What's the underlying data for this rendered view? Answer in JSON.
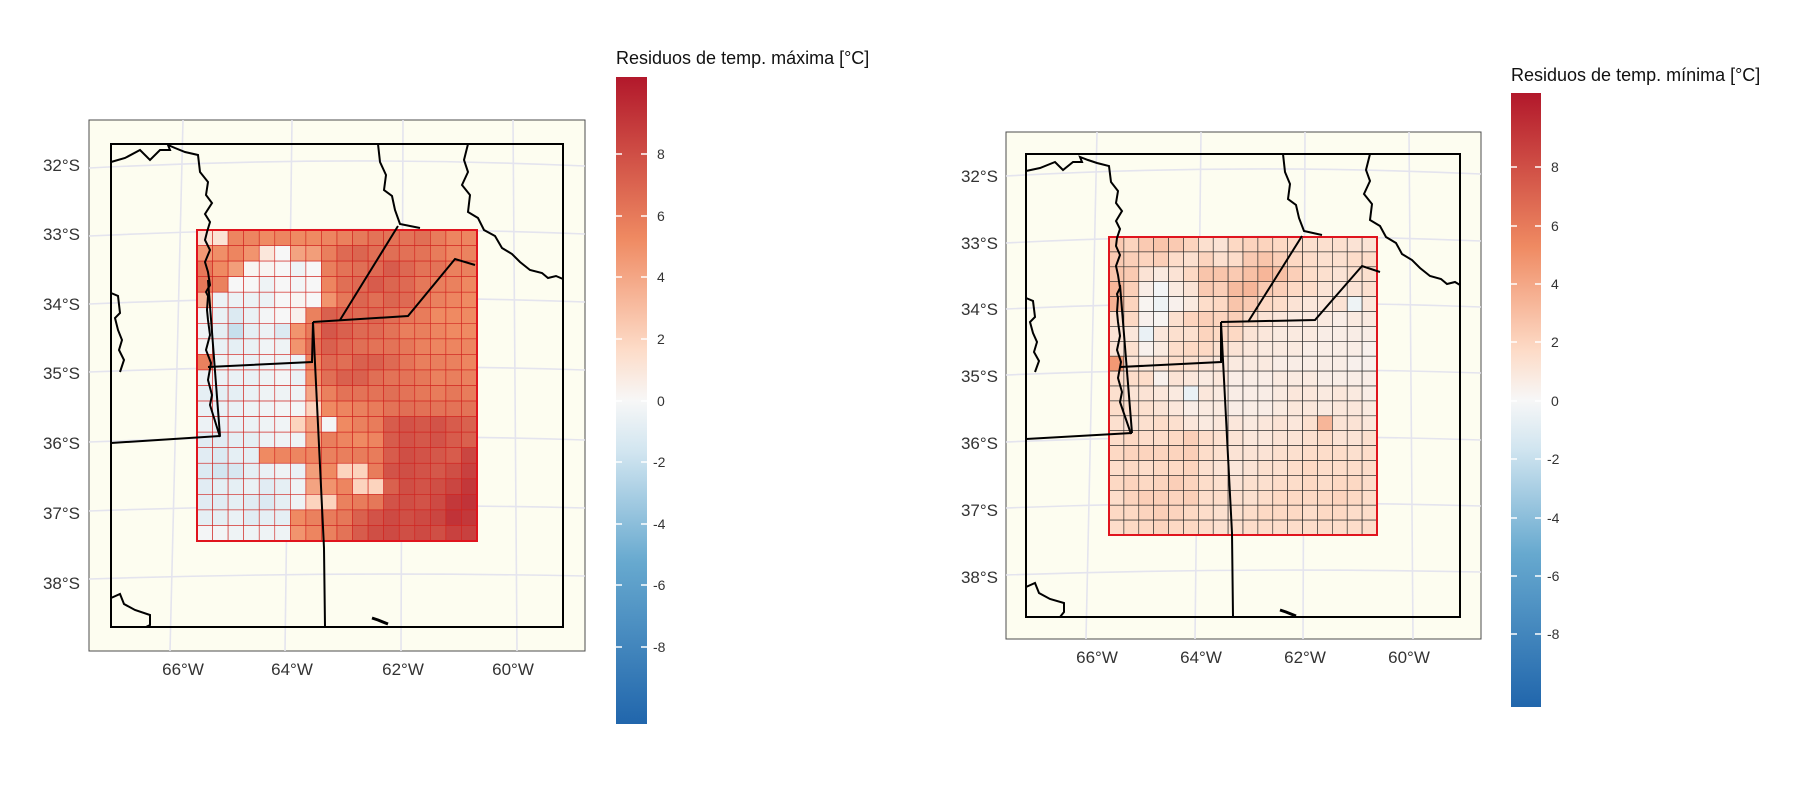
{
  "panels": [
    {
      "id": "max",
      "colorbar_title": "Residuos de temp. máxima [°C]",
      "colorbar_ticks": [
        "8",
        "6",
        "4",
        "2",
        "0",
        "-2",
        "-4",
        "-6",
        "-8"
      ],
      "lat_labels": [
        "32°S",
        "33°S",
        "34°S",
        "35°S",
        "36°S",
        "37°S",
        "38°S"
      ],
      "lon_labels": [
        "66°W",
        "64°W",
        "62°W",
        "60°W"
      ],
      "grid_cols": 18,
      "grid_rows": 20,
      "grid": [
        [
          1.2,
          1.2,
          5.2,
          5.2,
          5.0,
          5.2,
          5.0,
          5.0,
          5.2,
          5.4,
          5.7,
          6.0,
          6.0,
          6.0,
          6.2,
          5.6,
          5.2,
          5.2
        ],
        [
          4.4,
          4.8,
          5.2,
          4.6,
          1.0,
          0.0,
          4.0,
          4.2,
          5.5,
          6.4,
          6.6,
          6.2,
          6.2,
          6.1,
          6.0,
          5.6,
          5.2,
          5.3
        ],
        [
          5.8,
          5.0,
          4.2,
          0.2,
          0.2,
          0.0,
          -0.4,
          0.0,
          5.5,
          6.0,
          6.2,
          6.4,
          7.0,
          6.5,
          6.0,
          6.0,
          5.4,
          5.4
        ],
        [
          5.8,
          5.4,
          0.0,
          0.0,
          -0.4,
          0.0,
          -0.2,
          0.0,
          5.2,
          6.2,
          6.4,
          7.0,
          6.6,
          6.4,
          5.8,
          5.5,
          5.4,
          5.1
        ],
        [
          3.2,
          -0.5,
          -0.5,
          -0.5,
          -0.5,
          0.0,
          0.2,
          0.0,
          4.6,
          5.8,
          6.6,
          6.2,
          6.6,
          6.4,
          5.8,
          5.4,
          5.2,
          5.0
        ],
        [
          -0.2,
          -0.6,
          -1.2,
          -0.6,
          -0.2,
          0.0,
          0.4,
          5.4,
          6.8,
          6.6,
          6.4,
          6.6,
          6.2,
          5.8,
          5.6,
          5.0,
          5.0,
          5.0
        ],
        [
          -0.4,
          -0.8,
          -2.0,
          -0.8,
          -0.5,
          -1.2,
          4.6,
          5.6,
          7.2,
          6.8,
          6.4,
          6.3,
          6.0,
          5.5,
          5.5,
          5.2,
          5.0,
          5.0
        ],
        [
          -0.2,
          -0.6,
          -0.8,
          -0.6,
          -0.3,
          -0.4,
          4.6,
          6.0,
          6.8,
          6.4,
          6.2,
          6.0,
          6.0,
          5.8,
          5.4,
          5.2,
          5.2,
          5.2
        ],
        [
          5.4,
          -0.4,
          -0.4,
          -0.6,
          -0.3,
          -0.4,
          -0.5,
          5.2,
          6.4,
          6.2,
          6.8,
          6.8,
          6.4,
          5.9,
          5.5,
          5.5,
          5.4,
          5.2
        ],
        [
          -0.5,
          -0.5,
          -0.6,
          -0.6,
          -0.4,
          -0.2,
          -0.6,
          4.8,
          6.2,
          6.8,
          6.8,
          6.2,
          6.0,
          6.0,
          5.8,
          5.4,
          5.5,
          5.4
        ],
        [
          -0.8,
          -0.8,
          -0.8,
          -0.6,
          -0.4,
          -0.4,
          -0.4,
          3.8,
          5.4,
          6.0,
          6.0,
          6.0,
          6.2,
          6.0,
          5.8,
          5.6,
          5.8,
          5.6
        ],
        [
          -0.6,
          -0.6,
          -0.6,
          -0.4,
          -0.3,
          -0.2,
          -0.2,
          2.0,
          5.0,
          5.2,
          5.4,
          5.6,
          6.0,
          6.2,
          6.1,
          6.0,
          6.0,
          6.0
        ],
        [
          -0.5,
          -0.6,
          -0.6,
          -0.5,
          -0.4,
          -0.3,
          2.0,
          4.0,
          -0.2,
          5.0,
          5.4,
          5.6,
          7.0,
          7.4,
          7.2,
          7.4,
          7.0,
          6.8
        ],
        [
          -1.0,
          -1.0,
          -0.8,
          -0.8,
          -0.5,
          -0.4,
          -0.4,
          4.2,
          5.5,
          5.2,
          5.0,
          5.2,
          7.0,
          7.4,
          7.2,
          7.4,
          7.0,
          6.8
        ],
        [
          -1.0,
          -1.2,
          -0.8,
          -0.8,
          5.0,
          5.2,
          5.2,
          5.2,
          5.4,
          5.5,
          5.6,
          5.6,
          7.0,
          7.6,
          7.4,
          7.2,
          7.0,
          8.0
        ],
        [
          -1.2,
          -1.6,
          -1.4,
          -0.8,
          -0.6,
          -0.4,
          -0.6,
          4.2,
          5.0,
          2.0,
          2.0,
          5.6,
          7.4,
          7.6,
          7.4,
          7.2,
          7.6,
          8.2
        ],
        [
          -1.0,
          -0.8,
          -0.8,
          -0.6,
          -1.0,
          -0.8,
          -0.4,
          4.0,
          4.6,
          5.2,
          2.0,
          2.0,
          6.8,
          7.6,
          7.4,
          7.6,
          8.0,
          8.6
        ],
        [
          -1.0,
          -1.0,
          -0.8,
          -1.0,
          -1.2,
          -0.8,
          -0.4,
          2.0,
          2.0,
          5.4,
          5.6,
          5.8,
          7.4,
          7.6,
          7.4,
          7.8,
          8.6,
          8.8
        ],
        [
          -0.8,
          -0.8,
          -0.6,
          -1.0,
          -0.8,
          -0.8,
          5.0,
          5.4,
          5.6,
          5.8,
          6.8,
          7.4,
          7.8,
          7.6,
          7.8,
          8.0,
          8.8,
          8.6
        ],
        [
          -0.2,
          -0.2,
          -0.4,
          -0.4,
          -0.4,
          -0.4,
          4.6,
          5.2,
          5.4,
          6.0,
          7.0,
          7.6,
          7.8,
          7.6,
          7.8,
          7.6,
          8.2,
          8.2
        ]
      ]
    },
    {
      "id": "min",
      "colorbar_title": "Residuos de temp. mínima [°C]",
      "colorbar_ticks": [
        "8",
        "6",
        "4",
        "2",
        "0",
        "-2",
        "-4",
        "-6",
        "-8"
      ],
      "lat_labels": [
        "32°S",
        "33°S",
        "34°S",
        "35°S",
        "36°S",
        "37°S",
        "38°S"
      ],
      "lon_labels": [
        "66°W",
        "64°W",
        "62°W",
        "60°W"
      ],
      "grid_cols": 18,
      "grid_rows": 20,
      "grid": [
        [
          2.4,
          2.0,
          2.4,
          2.6,
          2.4,
          2.0,
          1.4,
          1.2,
          1.8,
          2.0,
          2.0,
          1.8,
          1.6,
          1.4,
          1.4,
          1.4,
          1.2,
          1.2
        ],
        [
          2.4,
          2.2,
          2.0,
          2.2,
          1.6,
          1.4,
          2.0,
          1.4,
          1.6,
          2.4,
          2.6,
          2.2,
          1.8,
          1.6,
          1.4,
          1.4,
          1.6,
          1.6
        ],
        [
          2.6,
          2.4,
          1.2,
          0.8,
          1.2,
          1.8,
          2.6,
          2.6,
          2.4,
          2.8,
          3.2,
          2.8,
          2.2,
          1.6,
          1.4,
          1.2,
          1.4,
          1.4
        ],
        [
          3.2,
          2.2,
          0.6,
          -0.2,
          0.8,
          1.2,
          2.4,
          2.2,
          3.0,
          3.2,
          2.4,
          2.2,
          1.8,
          1.6,
          1.2,
          1.0,
          1.2,
          1.4
        ],
        [
          3.4,
          2.0,
          0.2,
          -0.4,
          0.4,
          0.8,
          1.6,
          1.8,
          2.6,
          2.4,
          1.8,
          1.6,
          1.2,
          1.0,
          1.0,
          1.2,
          -0.4,
          1.0
        ],
        [
          1.4,
          1.8,
          0.4,
          0.2,
          1.4,
          2.0,
          2.2,
          2.0,
          2.2,
          1.6,
          1.2,
          1.0,
          0.8,
          0.8,
          0.8,
          0.6,
          0.8,
          0.8
        ],
        [
          1.2,
          1.0,
          -0.6,
          1.0,
          1.4,
          1.4,
          2.0,
          1.8,
          1.8,
          1.2,
          1.0,
          0.8,
          0.8,
          0.8,
          0.6,
          0.6,
          0.6,
          0.6
        ],
        [
          1.2,
          1.4,
          0.4,
          0.8,
          1.6,
          1.8,
          1.8,
          1.4,
          1.2,
          1.0,
          0.8,
          0.8,
          0.8,
          0.6,
          0.6,
          0.6,
          0.6,
          0.4
        ],
        [
          4.4,
          1.2,
          1.0,
          1.2,
          1.6,
          1.4,
          1.2,
          1.0,
          0.8,
          0.8,
          0.8,
          0.6,
          0.6,
          0.6,
          0.6,
          0.6,
          0.4,
          0.4
        ],
        [
          1.6,
          1.6,
          1.6,
          0.4,
          1.2,
          1.0,
          0.8,
          1.0,
          0.6,
          0.6,
          0.6,
          0.8,
          0.8,
          0.8,
          0.6,
          0.6,
          0.6,
          0.6
        ],
        [
          1.4,
          1.2,
          1.2,
          1.0,
          0.8,
          -0.6,
          1.0,
          0.8,
          0.6,
          0.6,
          0.6,
          0.8,
          1.0,
          1.0,
          0.8,
          1.0,
          0.8,
          0.6
        ],
        [
          1.6,
          1.4,
          1.4,
          1.2,
          1.0,
          0.6,
          0.8,
          0.8,
          0.6,
          0.6,
          0.6,
          0.8,
          1.0,
          1.0,
          0.8,
          1.0,
          1.0,
          0.8
        ],
        [
          1.4,
          1.2,
          1.4,
          1.6,
          1.4,
          1.0,
          0.8,
          1.0,
          1.0,
          0.8,
          1.0,
          1.2,
          1.0,
          1.4,
          3.2,
          1.2,
          1.2,
          1.0
        ],
        [
          1.6,
          1.8,
          1.6,
          1.6,
          1.8,
          2.2,
          1.6,
          1.4,
          1.2,
          1.0,
          1.0,
          1.2,
          1.2,
          1.4,
          1.6,
          1.2,
          1.2,
          1.4
        ],
        [
          1.8,
          2.0,
          2.0,
          2.0,
          2.0,
          2.2,
          1.6,
          1.4,
          1.2,
          1.2,
          1.2,
          1.4,
          1.4,
          1.6,
          1.6,
          1.6,
          1.4,
          1.6
        ],
        [
          1.6,
          1.8,
          1.6,
          1.8,
          1.8,
          2.0,
          1.4,
          1.2,
          1.0,
          1.2,
          1.4,
          1.4,
          1.6,
          1.8,
          1.6,
          1.6,
          1.6,
          1.6
        ],
        [
          1.8,
          2.0,
          1.8,
          2.0,
          2.2,
          2.0,
          1.6,
          1.4,
          1.2,
          1.4,
          1.4,
          1.6,
          1.6,
          1.8,
          1.6,
          1.8,
          1.8,
          1.6
        ],
        [
          1.6,
          2.0,
          2.2,
          2.2,
          2.0,
          2.2,
          1.6,
          1.6,
          1.4,
          1.4,
          1.6,
          1.8,
          1.8,
          1.8,
          1.8,
          2.0,
          1.8,
          1.6
        ],
        [
          1.8,
          1.8,
          2.0,
          2.2,
          2.0,
          1.8,
          1.6,
          1.4,
          1.4,
          1.6,
          1.8,
          1.8,
          1.8,
          1.6,
          1.8,
          1.8,
          1.6,
          1.6
        ],
        [
          1.6,
          1.8,
          1.8,
          2.0,
          1.8,
          1.8,
          1.6,
          1.4,
          1.4,
          1.6,
          1.6,
          1.6,
          1.6,
          1.6,
          1.6,
          1.6,
          1.6,
          1.6
        ]
      ]
    }
  ],
  "colors": {
    "map_background": "#fdfdf0",
    "panel_border": "#4d4d4d",
    "graticule": "#e4e4ee",
    "boundary": "#000000",
    "domain_box": "#e0141e",
    "cell_border_max": "#d0221e",
    "cell_border_min": "#222222"
  }
}
